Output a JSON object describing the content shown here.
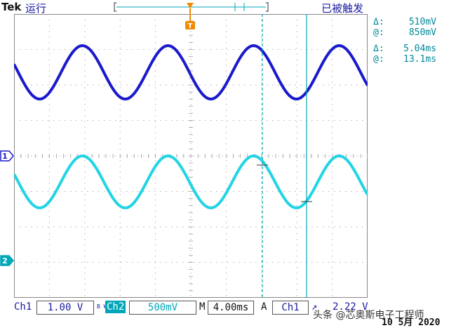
{
  "header": {
    "brand": "Tek",
    "run_state": "运行",
    "trigger_status": "已被触发",
    "trigger_marker": "T"
  },
  "markers": {
    "ch1": "1",
    "ch2": "2"
  },
  "cursor_readout": {
    "voltage_delta_symbol": "Δ:",
    "voltage_delta": "510mV",
    "voltage_at_symbol": "@:",
    "voltage_at": "850mV",
    "time_delta_symbol": "Δ:",
    "time_delta": "5.04ms",
    "time_at_symbol": "@:",
    "time_at": "13.1ms"
  },
  "status_bar": {
    "ch1_label": "Ch1",
    "ch1_scale": "1.00 V",
    "ch2_label": "Ch2",
    "ch2_scale": "500mV",
    "bw_mark": "B W",
    "timebase_label": "M",
    "timebase": "4.00ms",
    "trigger_mode": "A",
    "trigger_source": "Ch1",
    "trigger_level": "2.22 V"
  },
  "watermark": "头条 @芯奥斯电子工程师",
  "date": "10 5月  2020",
  "colors": {
    "ch1": "#1a1acc",
    "ch2": "#22d4e4",
    "cursor": "#00a7b8",
    "grid": "#b0b0b0",
    "trigger": "#f08a00"
  },
  "icons": {
    "trigger_marker": "trigger-T-icon",
    "channel_ground": "ground-arrow-icon"
  }
}
